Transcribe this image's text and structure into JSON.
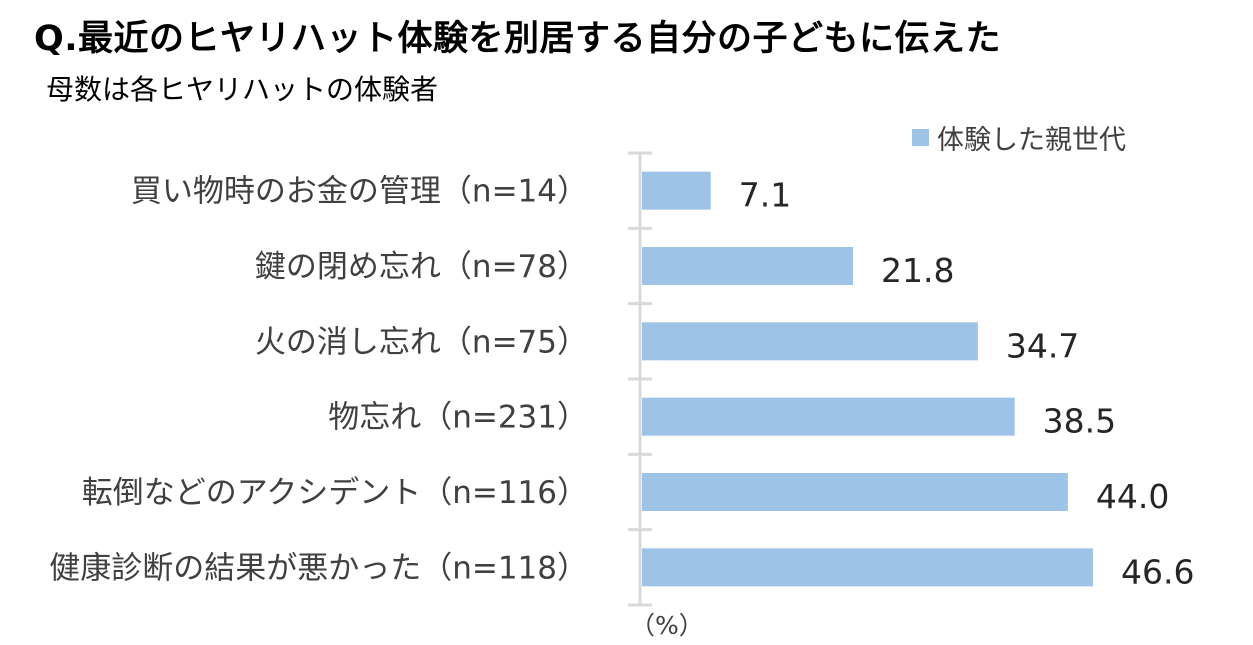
{
  "chart_data": {
    "type": "bar",
    "orientation": "horizontal",
    "title": "Q.最近のヒヤリハット体験を別居する自分の子どもに伝えた",
    "subtitle": "母数は各ヒヤリハットの体験者",
    "categories": [
      "買い物時のお金の管理（n=14）",
      "鍵の閉め忘れ（n=78）",
      "火の消し忘れ（n=75）",
      "物忘れ（n=231）",
      "転倒などのアクシデント（n=116）",
      "健康診断の結果が悪かった（n=118）"
    ],
    "series": [
      {
        "name": "体験した親世代",
        "values": [
          7.1,
          21.8,
          34.7,
          38.5,
          44.0,
          46.6
        ],
        "color": "#9DC3E6"
      }
    ],
    "value_labels": [
      "7.1",
      "21.8",
      "34.7",
      "38.5",
      "44.0",
      "46.6"
    ],
    "unit_label": "（%）",
    "xlim": [
      0,
      50
    ],
    "legend_position": "top-right",
    "grid": false,
    "axis_color": "#D9D9D9"
  }
}
